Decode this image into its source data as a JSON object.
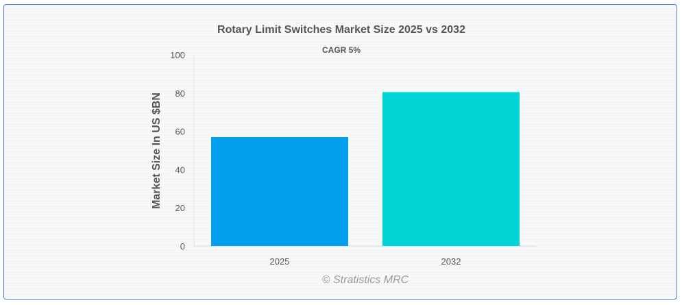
{
  "chart_data": {
    "type": "bar",
    "title": "Rotary Limit Switches Market Size 2025 vs 2032",
    "subtitle": "CAGR 5%",
    "categories": [
      "2025",
      "2032"
    ],
    "values": [
      57,
      80.5
    ],
    "colors": [
      "#039fef",
      "#00d4d4"
    ],
    "xlabel": "",
    "ylabel": "Market Size In US $BN",
    "ylim": [
      0,
      100
    ],
    "yticks": [
      "0",
      "20",
      "40",
      "60",
      "80",
      "100"
    ],
    "grid": false,
    "legend": "none"
  },
  "credit": "© Stratistics MRC"
}
